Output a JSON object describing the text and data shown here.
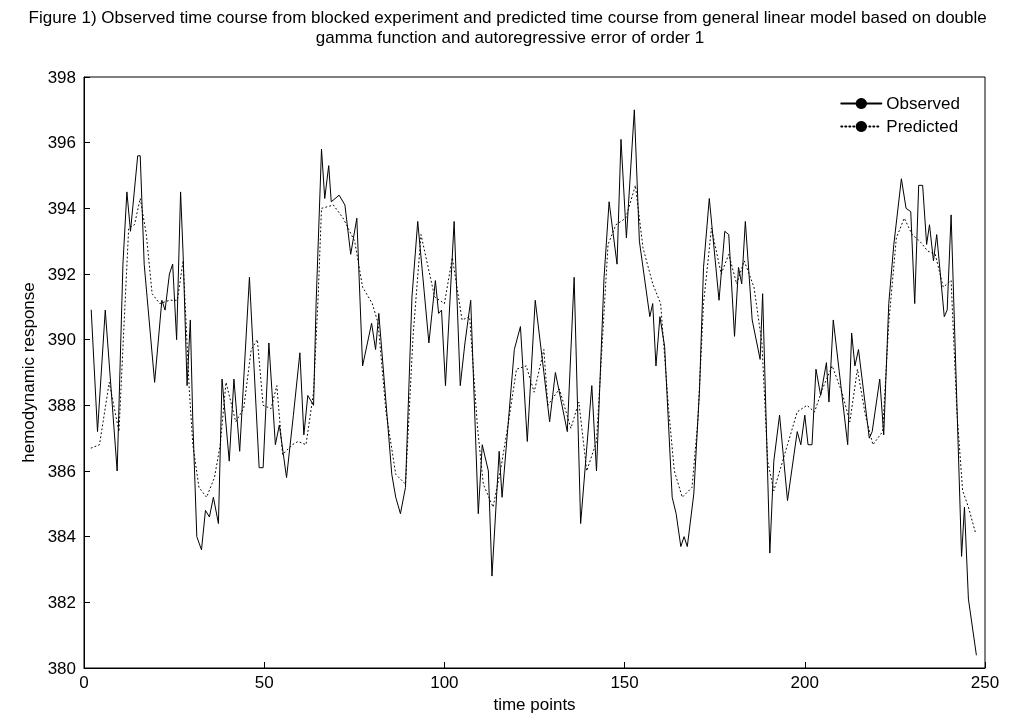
{
  "chart_data": {
    "type": "line",
    "title": "Figure 1) Observed time course from blocked experiment and predicted time course from general linear model based on double gamma function and autoregressive error of order 1",
    "xlabel": "time points",
    "ylabel": "hemodynamic response",
    "xlim": [
      0,
      250
    ],
    "xticks": [
      0,
      50,
      100,
      150,
      200,
      250
    ],
    "ylim": [
      380,
      398
    ],
    "yticks": [
      380,
      382,
      384,
      386,
      388,
      390,
      392,
      394,
      396,
      398
    ],
    "grid": false,
    "legend": "top right",
    "marker": "none",
    "series": [
      {
        "name": "Observed",
        "color": "#000000",
        "line_style": "solid",
        "x": [
          2.0,
          3.75,
          5.9,
          9.2,
          10.8,
          11.9,
          12.9,
          14.9,
          15.6,
          16.7,
          19.6,
          21.6,
          22.5,
          23.7,
          24.6,
          25.7,
          26.8,
          27.5,
          28.6,
          29.5,
          30.2,
          31.3,
          32.6,
          33.7,
          34.8,
          35.9,
          37.3,
          38.3,
          40.3,
          41.6,
          43.2,
          45.9,
          48.6,
          49.7,
          51.3,
          53.1,
          54.2,
          56.2,
          58.1,
          59.9,
          61.0,
          62.1,
          63.7,
          64.4,
          65.9,
          66.8,
          67.9,
          68.6,
          70.8,
          72.4,
          74.0,
          75.7,
          77.3,
          79.8,
          80.9,
          81.8,
          85.4,
          86.5,
          87.8,
          89.2,
          91.0,
          92.6,
          95.7,
          97.5,
          98.4,
          99.2,
          100.3,
          102.7,
          104.4,
          105.7,
          107.3,
          109.4,
          110.5,
          112.2,
          113.2,
          115.2,
          116.0,
          119.4,
          121.1,
          123.0,
          125.2,
          127.6,
          129.2,
          130.8,
          134.1,
          136.0,
          137.8,
          140.9,
          142.2,
          144.3,
          145.7,
          147.9,
          149.0,
          150.5,
          152.7,
          154.1,
          157.0,
          157.8,
          158.7,
          159.8,
          161.1,
          163.2,
          164.3,
          165.6,
          166.5,
          167.4,
          169.2,
          170.8,
          171.9,
          173.5,
          176.2,
          177.8,
          178.9,
          180.5,
          181.6,
          182.5,
          183.5,
          185.4,
          187.6,
          188.3,
          190.3,
          191.4,
          193.0,
          195.2,
          197.9,
          198.9,
          200.0,
          200.9,
          202.0,
          203.1,
          204.4,
          206.0,
          206.7,
          207.9,
          211.9,
          213.0,
          213.9,
          214.9,
          217.9,
          218.7,
          220.8,
          221.9,
          223.3,
          224.7,
          226.8,
          228.1,
          229.4,
          230.5,
          231.6,
          232.7,
          233.8,
          234.6,
          235.7,
          236.6,
          238.7,
          239.5,
          240.6,
          241.6,
          243.5,
          244.3,
          245.4,
          247.6
        ],
        "values": [
          390.9,
          387.2,
          390.9,
          386.0,
          392.3,
          394.5,
          393.3,
          395.6,
          395.6,
          392.3,
          388.7,
          391.2,
          390.9,
          392.0,
          392.3,
          390.0,
          394.5,
          392.6,
          388.6,
          390.6,
          387.5,
          384.0,
          383.6,
          384.8,
          384.6,
          385.2,
          384.4,
          388.8,
          386.3,
          388.8,
          386.6,
          391.9,
          386.1,
          386.1,
          389.9,
          386.8,
          387.4,
          385.8,
          387.7,
          389.6,
          387.1,
          388.3,
          388.0,
          391.1,
          395.8,
          394.3,
          395.3,
          394.2,
          394.4,
          394.1,
          392.6,
          393.7,
          389.2,
          390.5,
          389.7,
          390.8,
          385.9,
          385.2,
          384.7,
          385.5,
          391.3,
          393.6,
          389.9,
          391.8,
          390.8,
          390.9,
          388.6,
          393.6,
          388.6,
          389.9,
          391.2,
          384.7,
          386.8,
          386.0,
          382.8,
          386.6,
          385.2,
          389.7,
          390.4,
          386.9,
          391.2,
          389.0,
          387.5,
          389.0,
          387.2,
          391.9,
          384.4,
          388.6,
          386.0,
          391.9,
          394.2,
          392.3,
          396.1,
          393.1,
          397.0,
          393.0,
          390.7,
          391.1,
          389.2,
          390.7,
          389.8,
          385.2,
          384.7,
          383.7,
          384.0,
          383.7,
          385.3,
          388.5,
          392.2,
          394.3,
          391.2,
          393.3,
          393.2,
          390.1,
          392.2,
          391.7,
          393.6,
          390.6,
          389.4,
          391.4,
          383.5,
          386.3,
          387.7,
          385.1,
          387.2,
          386.8,
          387.7,
          386.8,
          386.8,
          389.1,
          388.3,
          389.3,
          388.1,
          390.6,
          386.8,
          390.2,
          389.2,
          389.7,
          387.0,
          387.2,
          388.8,
          387.1,
          391.1,
          392.9,
          394.9,
          394.0,
          393.9,
          391.1,
          394.7,
          394.7,
          392.9,
          393.5,
          392.4,
          393.2,
          390.7,
          390.9,
          393.8,
          390.2,
          383.4,
          384.9,
          382.1,
          380.4
        ]
      },
      {
        "name": "Predicted",
        "color": "#000000",
        "line_style": "dotted",
        "x": [
          2.0,
          4.3,
          7.0,
          9.7,
          11.3,
          12.4,
          14.0,
          15.6,
          17.3,
          18.9,
          21.0,
          23.8,
          25.9,
          27.5,
          29.2,
          30.2,
          31.9,
          34.0,
          36.2,
          37.8,
          39.4,
          42.1,
          44.3,
          46.4,
          48.1,
          49.7,
          51.9,
          53.5,
          55.1,
          57.8,
          59.4,
          61.6,
          63.7,
          65.0,
          65.9,
          69.2,
          71.9,
          75.1,
          77.3,
          80.0,
          81.6,
          83.8,
          86.5,
          89.2,
          91.3,
          93.5,
          95.1,
          97.3,
          100.0,
          102.2,
          104.9,
          107.0,
          109.2,
          110.8,
          113.5,
          115.7,
          117.8,
          120.0,
          122.7,
          124.9,
          127.6,
          128.7,
          131.9,
          135.1,
          137.3,
          139.5,
          142.2,
          143.8,
          145.4,
          147.6,
          150.3,
          153.0,
          155.1,
          157.8,
          160.0,
          162.2,
          163.8,
          166.0,
          168.7,
          170.3,
          171.9,
          174.1,
          176.8,
          178.9,
          181.1,
          183.2,
          185.9,
          188.1,
          189.7,
          191.4,
          192.5,
          195.2,
          197.9,
          200.6,
          202.7,
          204.9,
          207.6,
          210.3,
          212.5,
          214.6,
          216.8,
          218.9,
          221.6,
          223.3,
          225.4,
          227.6,
          229.8,
          231.9,
          234.1,
          236.2,
          238.4,
          240.6,
          242.2,
          243.8,
          245.4,
          247.4
        ],
        "values": [
          386.7,
          386.8,
          388.7,
          387.2,
          390.9,
          393.4,
          393.5,
          394.3,
          393.2,
          391.4,
          391.1,
          391.2,
          391.2,
          392.4,
          388.5,
          386.8,
          385.5,
          385.2,
          385.8,
          386.8,
          388.7,
          387.5,
          387.9,
          389.7,
          390.0,
          388.0,
          387.9,
          388.6,
          386.5,
          386.8,
          386.9,
          386.8,
          388.4,
          391.4,
          394.0,
          394.1,
          393.7,
          393.0,
          391.6,
          391.1,
          390.5,
          387.8,
          385.9,
          385.6,
          390.1,
          393.2,
          392.4,
          391.3,
          391.1,
          392.5,
          390.6,
          390.7,
          387.3,
          385.6,
          384.9,
          386.1,
          387.5,
          389.1,
          389.2,
          388.4,
          389.7,
          388.0,
          388.5,
          387.3,
          388.1,
          386.0,
          386.9,
          389.9,
          392.9,
          393.5,
          393.7,
          394.7,
          392.8,
          391.7,
          391.1,
          387.9,
          386.0,
          385.2,
          385.5,
          387.5,
          391.1,
          393.4,
          392.0,
          392.6,
          391.7,
          392.4,
          391.6,
          389.9,
          386.3,
          385.4,
          385.8,
          386.8,
          387.8,
          388.0,
          387.8,
          388.5,
          389.2,
          388.4,
          387.5,
          389.1,
          387.7,
          386.8,
          387.2,
          390.5,
          393.1,
          393.7,
          393.2,
          393.0,
          392.7,
          392.6,
          391.6,
          391.8,
          387.8,
          385.4,
          384.9,
          384.1
        ]
      }
    ]
  }
}
